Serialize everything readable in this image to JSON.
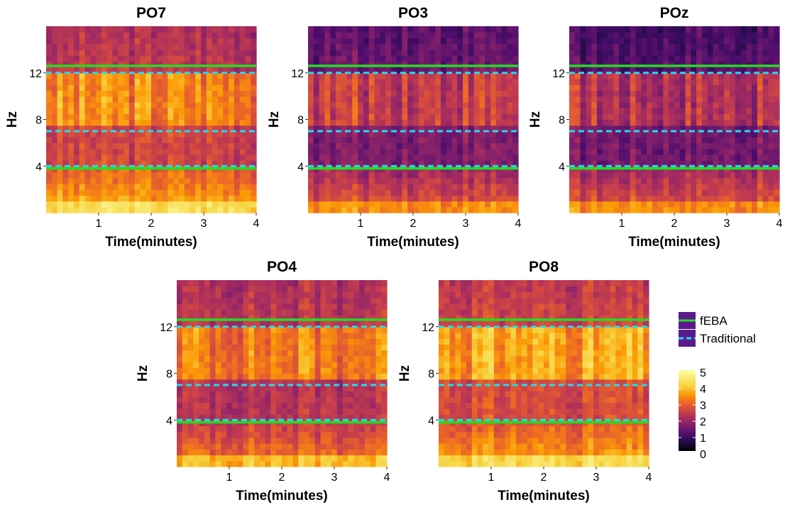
{
  "chart_data": [
    {
      "type": "heatmap",
      "title": "PO7",
      "xlabel": "Time(minutes)",
      "ylabel": "Hz",
      "xlim": [
        0,
        4
      ],
      "ylim": [
        0,
        16
      ],
      "x_ticks": [
        "1",
        "2",
        "3",
        "4"
      ],
      "y_ticks": [
        "4",
        "8",
        "12"
      ],
      "fEBA_lines_hz": [
        3.8,
        12.6
      ],
      "traditional_lines_hz": [
        4,
        7,
        12
      ],
      "mean_power_low": 3.5,
      "mean_power_alpha": 3.3,
      "mean_power_high": 2.3
    },
    {
      "type": "heatmap",
      "title": "PO3",
      "xlabel": "Time(minutes)",
      "ylabel": "Hz",
      "xlim": [
        0,
        4
      ],
      "ylim": [
        0,
        16
      ],
      "x_ticks": [
        "1",
        "2",
        "3",
        "4"
      ],
      "y_ticks": [
        "4",
        "8",
        "12"
      ],
      "fEBA_lines_hz": [
        3.8,
        12.6
      ],
      "traditional_lines_hz": [
        4,
        7,
        12
      ],
      "mean_power_low": 2.6,
      "mean_power_alpha": 2.4,
      "mean_power_high": 1.4
    },
    {
      "type": "heatmap",
      "title": "POz",
      "xlabel": "Time(minutes)",
      "ylabel": "Hz",
      "xlim": [
        0,
        4
      ],
      "ylim": [
        0,
        16
      ],
      "x_ticks": [
        "1",
        "2",
        "3",
        "4"
      ],
      "y_ticks": [
        "4",
        "8",
        "12"
      ],
      "fEBA_lines_hz": [
        3.8,
        12.6
      ],
      "traditional_lines_hz": [
        4,
        7,
        12
      ],
      "mean_power_low": 2.6,
      "mean_power_alpha": 2.2,
      "mean_power_high": 1.2
    },
    {
      "type": "heatmap",
      "title": "PO4",
      "xlabel": "Time(minutes)",
      "ylabel": "Hz",
      "xlim": [
        0,
        4
      ],
      "ylim": [
        0,
        16
      ],
      "x_ticks": [
        "1",
        "2",
        "3",
        "4"
      ],
      "y_ticks": [
        "4",
        "8",
        "12"
      ],
      "fEBA_lines_hz": [
        3.8,
        12.6
      ],
      "traditional_lines_hz": [
        4,
        7,
        12
      ],
      "mean_power_low": 3.0,
      "mean_power_alpha": 3.2,
      "mean_power_high": 2.3
    },
    {
      "type": "heatmap",
      "title": "PO8",
      "xlabel": "Time(minutes)",
      "ylabel": "Hz",
      "xlim": [
        0,
        4
      ],
      "ylim": [
        0,
        16
      ],
      "x_ticks": [
        "1",
        "2",
        "3",
        "4"
      ],
      "y_ticks": [
        "4",
        "8",
        "12"
      ],
      "fEBA_lines_hz": [
        3.8,
        12.6
      ],
      "traditional_lines_hz": [
        4,
        7,
        12
      ],
      "mean_power_low": 3.4,
      "mean_power_alpha": 3.6,
      "mean_power_high": 2.5
    }
  ],
  "legend": {
    "lines": [
      {
        "label": "fEBA",
        "color": "#22dd22",
        "style": "solid"
      },
      {
        "label": "Traditional",
        "color": "#22ddee",
        "style": "dashed"
      }
    ],
    "colorbar": {
      "labels": [
        "5",
        "4",
        "3",
        "2",
        "1",
        "0"
      ],
      "range": [
        0,
        5
      ]
    }
  },
  "colors": {
    "fEBA": "#22dd22",
    "traditional": "#22ddee",
    "legend_key_bg": "#5b1a8c"
  }
}
